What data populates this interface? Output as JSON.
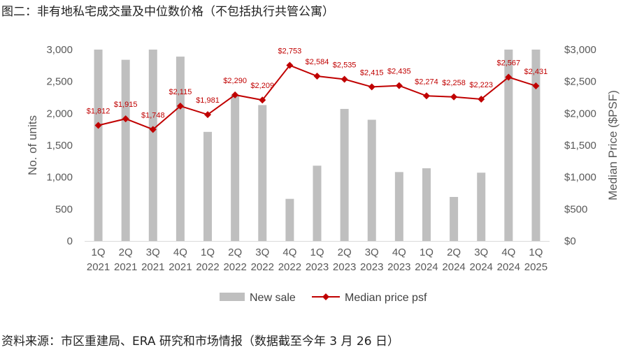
{
  "figure": {
    "title": "图二：非有地私宅成交量及中位数价格（不包括执行共管公寓）",
    "source": "资料来源：市区重建局、ERA 研究和市场情报（数据截至今年 3 月 26 日）"
  },
  "chart_data": {
    "type": "bar",
    "categories": [
      [
        "1Q",
        "2021"
      ],
      [
        "2Q",
        "2021"
      ],
      [
        "3Q",
        "2021"
      ],
      [
        "4Q",
        "2021"
      ],
      [
        "1Q",
        "2022"
      ],
      [
        "2Q",
        "2022"
      ],
      [
        "3Q",
        "2022"
      ],
      [
        "4Q",
        "2022"
      ],
      [
        "1Q",
        "2023"
      ],
      [
        "2Q",
        "2023"
      ],
      [
        "3Q",
        "2023"
      ],
      [
        "4Q",
        "2023"
      ],
      [
        "1Q",
        "2024"
      ],
      [
        "2Q",
        "2024"
      ],
      [
        "3Q",
        "2024"
      ],
      [
        "4Q",
        "2024"
      ],
      [
        "1Q",
        "2025"
      ]
    ],
    "series": [
      {
        "name": "New sale",
        "type": "bar",
        "axis": "left",
        "color": "#bfbfbf",
        "values": [
          3000,
          2840,
          3000,
          2890,
          1710,
          2290,
          2130,
          660,
          1180,
          2070,
          1900,
          1080,
          1140,
          690,
          1070,
          3000,
          3000
        ]
      },
      {
        "name": "Median price psf",
        "type": "line",
        "axis": "right",
        "color": "#c00000",
        "marker": "diamond",
        "values": [
          1812,
          1915,
          1748,
          2115,
          1981,
          2290,
          2209,
          2753,
          2584,
          2535,
          2415,
          2435,
          2274,
          2258,
          2223,
          2567,
          2431
        ],
        "labels": [
          "$1,812",
          "$1,915",
          "$1,748",
          "$2,115",
          "$1,981",
          "$2,290",
          "$2,209",
          "$2,753",
          "$2,584",
          "$2,535",
          "$2,415",
          "$2,435",
          "$2,274",
          "$2,258",
          "$2,223",
          "$2,567",
          "$2,431"
        ]
      }
    ],
    "y_left": {
      "label": "No. of units",
      "range": [
        0,
        3000
      ],
      "ticks": [
        "0",
        "500",
        "1,000",
        "1,500",
        "2,000",
        "2,500",
        "3,000"
      ]
    },
    "y_right": {
      "label": "Median Price ($PSF)",
      "range": [
        0,
        3000
      ],
      "ticks": [
        "$0",
        "$500",
        "$1,000",
        "$1,500",
        "$2,000",
        "$2,500",
        "$3,000"
      ]
    },
    "grid": false,
    "legend": "bottom"
  }
}
